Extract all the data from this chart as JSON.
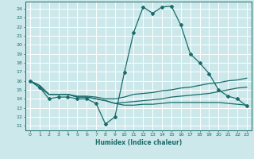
{
  "xlabel": "Humidex (Indice chaleur)",
  "ylabel": "",
  "bg_color": "#cce8ea",
  "grid_color": "#ffffff",
  "line_color": "#1a6b6b",
  "xlim": [
    -0.5,
    23.5
  ],
  "ylim": [
    10.5,
    24.8
  ],
  "yticks": [
    11,
    12,
    13,
    14,
    15,
    16,
    17,
    18,
    19,
    20,
    21,
    22,
    23,
    24
  ],
  "xticks": [
    0,
    1,
    2,
    3,
    4,
    5,
    6,
    7,
    8,
    9,
    10,
    11,
    12,
    13,
    14,
    15,
    16,
    17,
    18,
    19,
    20,
    21,
    22,
    23
  ],
  "line1_x": [
    0,
    1,
    2,
    3,
    4,
    5,
    6,
    7,
    8,
    9,
    10,
    11,
    12,
    13,
    14,
    15,
    16,
    17,
    18,
    19,
    20,
    21,
    22,
    23
  ],
  "line1_y": [
    16.0,
    15.3,
    14.0,
    14.2,
    14.2,
    14.0,
    14.0,
    13.5,
    11.2,
    12.0,
    16.9,
    21.4,
    24.2,
    23.5,
    24.2,
    24.3,
    22.2,
    19.0,
    18.0,
    16.8,
    15.0,
    14.3,
    14.0,
    13.2
  ],
  "line2_x": [
    0,
    1,
    2,
    3,
    4,
    5,
    6,
    7,
    8,
    9,
    10,
    11,
    12,
    13,
    14,
    15,
    16,
    17,
    18,
    19,
    20,
    21,
    22,
    23
  ],
  "line2_y": [
    16.0,
    15.5,
    14.5,
    14.5,
    14.5,
    14.3,
    14.3,
    14.2,
    14.0,
    14.0,
    14.2,
    14.5,
    14.6,
    14.7,
    14.9,
    15.0,
    15.2,
    15.3,
    15.5,
    15.7,
    15.8,
    16.0,
    16.1,
    16.3
  ],
  "line3_x": [
    0,
    1,
    2,
    3,
    4,
    5,
    6,
    7,
    8,
    9,
    10,
    11,
    12,
    13,
    14,
    15,
    16,
    17,
    18,
    19,
    20,
    21,
    22,
    23
  ],
  "line3_y": [
    16.0,
    15.5,
    14.5,
    14.5,
    14.5,
    14.2,
    14.2,
    14.0,
    13.8,
    13.5,
    13.6,
    13.7,
    13.8,
    13.9,
    14.0,
    14.2,
    14.3,
    14.4,
    14.5,
    14.6,
    14.8,
    15.0,
    15.2,
    15.3
  ],
  "line4_x": [
    0,
    2,
    3,
    4,
    5,
    6,
    7,
    8,
    9,
    10,
    11,
    12,
    13,
    14,
    15,
    16,
    17,
    18,
    19,
    20,
    21,
    22,
    23
  ],
  "line4_y": [
    16.0,
    14.5,
    14.5,
    14.5,
    14.2,
    14.2,
    14.0,
    13.8,
    13.5,
    13.3,
    13.3,
    13.4,
    13.4,
    13.5,
    13.6,
    13.6,
    13.6,
    13.6,
    13.6,
    13.6,
    13.5,
    13.4,
    13.3
  ]
}
